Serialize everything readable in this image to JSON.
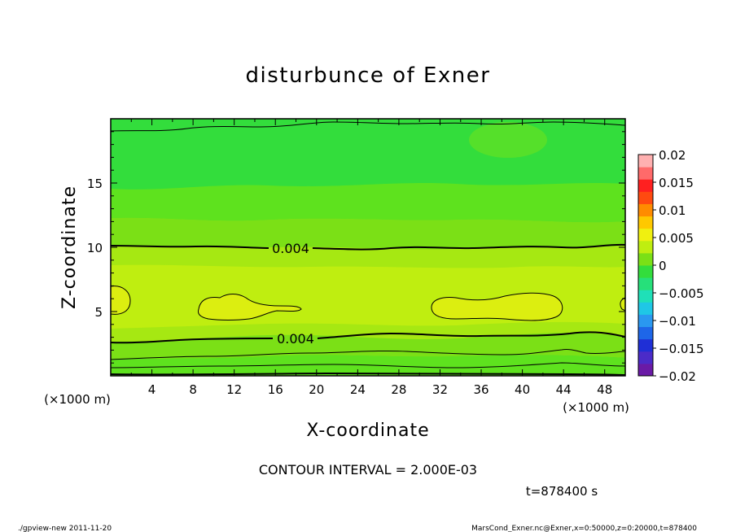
{
  "chart_data": {
    "type": "contour",
    "title": "disturbunce of Exner",
    "xlabel": "X-coordinate",
    "ylabel": "Z-coordinate",
    "x_unit_label": "(×1000 m)",
    "z_unit_label": "(×1000 m)",
    "xlim": [
      0,
      50
    ],
    "ylim": [
      0,
      20
    ],
    "xticks": [
      4,
      8,
      12,
      16,
      20,
      24,
      28,
      32,
      36,
      40,
      44,
      48
    ],
    "yticks": [
      5,
      10,
      15
    ],
    "contour_interval_text": "CONTOUR INTERVAL = 2.000E-03",
    "contour_labels": [
      "0.004",
      "0.004"
    ],
    "colorbar": {
      "ticks": [
        "0.02",
        "0.015",
        "0.01",
        "0.005",
        "0",
        "−0.005",
        "−0.01",
        "−0.015",
        "−0.02"
      ],
      "range": [
        -0.02,
        0.02
      ],
      "colors": [
        "#6a1aa6",
        "#4b2bc8",
        "#1f2fd6",
        "#1e66e8",
        "#2a98f0",
        "#1fc7e6",
        "#1fe0b8",
        "#26e07a",
        "#33dd3c",
        "#7be016",
        "#bfee10",
        "#f0f010",
        "#ffc800",
        "#ff8c00",
        "#ff4a10",
        "#ff2020",
        "#ff6a6a",
        "#ffb0b0"
      ]
    },
    "regions": [
      {
        "level": "0.002–0.004",
        "color": "#7be016"
      },
      {
        "level": "0.004–0.006",
        "color": "#bfee10"
      },
      {
        "level": "0.006–0.008",
        "color": "#dcee10"
      }
    ]
  },
  "time_text": "t=878400 s",
  "footer_left": "./gpview-new   2011-11-20",
  "footer_right": "MarsCond_Exner.nc@Exner,x=0:50000,z=0:20000,t=878400"
}
